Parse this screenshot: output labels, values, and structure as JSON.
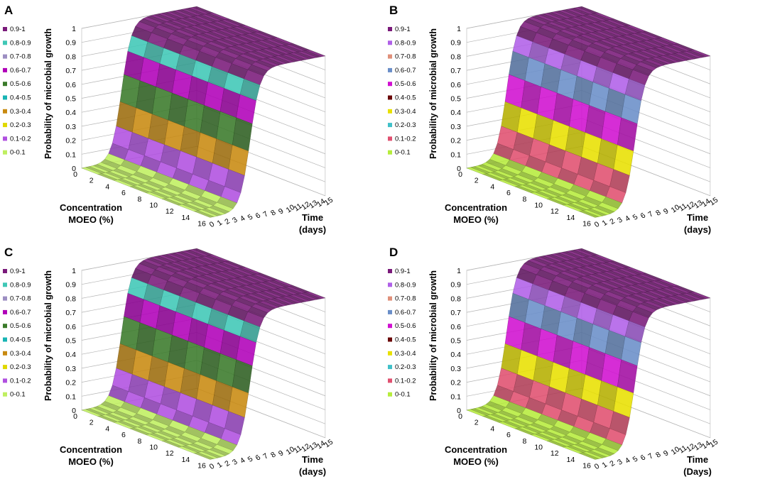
{
  "chart_data": [
    {
      "type": "surface3d",
      "panel_label": "A",
      "zlabel": "Probability of microbial growth",
      "xlabel_lines": [
        "Concentration",
        "MOEO (%)"
      ],
      "ylabel_lines": [
        "Time",
        "(days)"
      ],
      "x_ticks": [
        "0",
        "2",
        "4",
        "6",
        "8",
        "10",
        "12",
        "14",
        "16"
      ],
      "y_ticks": [
        "0",
        "1",
        "2",
        "3",
        "4",
        "5",
        "6",
        "7",
        "8",
        "9",
        "10",
        "11",
        "12",
        "13",
        "14",
        "15"
      ],
      "z_ticks": [
        "0",
        "0.1",
        "0.2",
        "0.3",
        "0.4",
        "0.5",
        "0.6",
        "0.7",
        "0.8",
        "0.9",
        "1"
      ],
      "zlim": [
        0,
        1
      ],
      "legend": [
        {
          "label": "0.9-1",
          "color": "#7a1a7a"
        },
        {
          "label": "0.8-0.9",
          "color": "#3fc7b6"
        },
        {
          "label": "0.7-0.8",
          "color": "#9c8ec2"
        },
        {
          "label": "0.6-0.7",
          "color": "#b000b8"
        },
        {
          "label": "0.5-0.6",
          "color": "#3a7a2a"
        },
        {
          "label": "0.4-0.5",
          "color": "#18b4b4"
        },
        {
          "label": "0.3-0.4",
          "color": "#c88a10"
        },
        {
          "label": "0.2-0.3",
          "color": "#e0d800"
        },
        {
          "label": "0.1-0.2",
          "color": "#b050e0"
        },
        {
          "label": "0-0.1",
          "color": "#bfef60"
        }
      ]
    },
    {
      "type": "surface3d",
      "panel_label": "B",
      "zlabel": "Probability of microbial growth",
      "xlabel_lines": [
        "Concentration",
        "MOEO (%)"
      ],
      "ylabel_lines": [
        "Time",
        "(days)"
      ],
      "x_ticks": [
        "0",
        "2",
        "4",
        "6",
        "8",
        "10",
        "12",
        "14",
        "16"
      ],
      "y_ticks": [
        "0",
        "1",
        "2",
        "3",
        "4",
        "5",
        "6",
        "7",
        "8",
        "9",
        "10",
        "11",
        "12",
        "13",
        "14",
        "15"
      ],
      "z_ticks": [
        "0",
        "0.1",
        "0.2",
        "0.3",
        "0.4",
        "0.5",
        "0.6",
        "0.7",
        "0.8",
        "0.9",
        "1"
      ],
      "zlim": [
        0,
        1
      ],
      "legend": [
        {
          "label": "0.9-1",
          "color": "#7a1a7a"
        },
        {
          "label": "0.8-0.9",
          "color": "#b060e8"
        },
        {
          "label": "0.7-0.8",
          "color": "#e0907a"
        },
        {
          "label": "0.6-0.7",
          "color": "#6a8ec8"
        },
        {
          "label": "0.5-0.6",
          "color": "#d010d0"
        },
        {
          "label": "0.4-0.5",
          "color": "#6a0808"
        },
        {
          "label": "0.3-0.4",
          "color": "#e8e000"
        },
        {
          "label": "0.2-0.3",
          "color": "#40c0c8"
        },
        {
          "label": "0.1-0.2",
          "color": "#e05070"
        },
        {
          "label": "0-0.1",
          "color": "#b6ec3c"
        }
      ]
    },
    {
      "type": "surface3d",
      "panel_label": "C",
      "zlabel": "Probability of microbial growth",
      "xlabel_lines": [
        "Concentration",
        "MOEO (%)"
      ],
      "ylabel_lines": [
        "Time",
        "(days)"
      ],
      "x_ticks": [
        "0",
        "2",
        "4",
        "6",
        "8",
        "10",
        "12",
        "14",
        "16"
      ],
      "y_ticks": [
        "0",
        "1",
        "2",
        "3",
        "4",
        "5",
        "6",
        "7",
        "8",
        "9",
        "10",
        "11",
        "12",
        "13",
        "14",
        "15"
      ],
      "z_ticks": [
        "0",
        "0.1",
        "0.2",
        "0.3",
        "0.4",
        "0.5",
        "0.6",
        "0.7",
        "0.8",
        "0.9",
        "1"
      ],
      "zlim": [
        0,
        1
      ],
      "legend": [
        {
          "label": "0.9-1",
          "color": "#7a1a7a"
        },
        {
          "label": "0.8-0.9",
          "color": "#3fc7b6"
        },
        {
          "label": "0.7-0.8",
          "color": "#9c8ec2"
        },
        {
          "label": "0.6-0.7",
          "color": "#b000b8"
        },
        {
          "label": "0.5-0.6",
          "color": "#3a7a2a"
        },
        {
          "label": "0.4-0.5",
          "color": "#18b4b4"
        },
        {
          "label": "0.3-0.4",
          "color": "#c88a10"
        },
        {
          "label": "0.2-0.3",
          "color": "#e0d800"
        },
        {
          "label": "0.1-0.2",
          "color": "#b050e0"
        },
        {
          "label": "0-0.1",
          "color": "#bfef60"
        }
      ]
    },
    {
      "type": "surface3d",
      "panel_label": "D",
      "zlabel": "Probability of microbial growth",
      "xlabel_lines": [
        "Concentration",
        "MOEO (%)"
      ],
      "ylabel_lines": [
        "Time",
        "(Days)"
      ],
      "x_ticks": [
        "0",
        "2",
        "4",
        "6",
        "8",
        "10",
        "12",
        "14",
        "16"
      ],
      "y_ticks": [
        "0",
        "1",
        "2",
        "3",
        "4",
        "5",
        "6",
        "7",
        "8",
        "9",
        "10",
        "11",
        "12",
        "13",
        "14",
        "15"
      ],
      "z_ticks": [
        "0",
        "0.1",
        "0.2",
        "0.3",
        "0.4",
        "0.5",
        "0.6",
        "0.7",
        "0.8",
        "0.9",
        "1"
      ],
      "zlim": [
        0,
        1
      ],
      "legend": [
        {
          "label": "0.9-1",
          "color": "#7a1a7a"
        },
        {
          "label": "0.8-0.9",
          "color": "#b060e8"
        },
        {
          "label": "0.7-0.8",
          "color": "#e0907a"
        },
        {
          "label": "0.6-0.7",
          "color": "#6a8ec8"
        },
        {
          "label": "0.5-0.6",
          "color": "#d010d0"
        },
        {
          "label": "0.4-0.5",
          "color": "#6a0808"
        },
        {
          "label": "0.3-0.4",
          "color": "#e8e000"
        },
        {
          "label": "0.2-0.3",
          "color": "#40c0c8"
        },
        {
          "label": "0.1-0.2",
          "color": "#e05070"
        },
        {
          "label": "0-0.1",
          "color": "#b6ec3c"
        }
      ]
    }
  ]
}
